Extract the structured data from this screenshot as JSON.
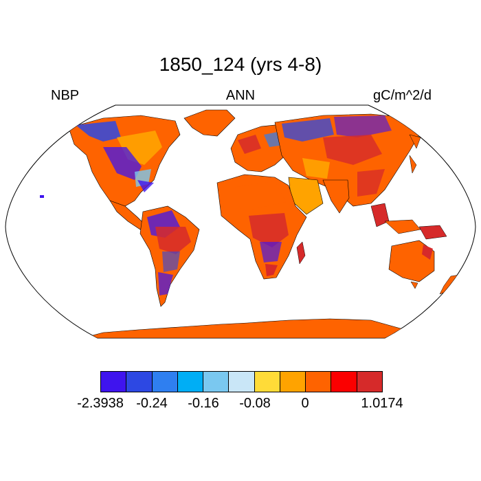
{
  "title": "1850_124 (yrs 4-8)",
  "left_label": "NBP",
  "center_label": "ANN",
  "right_label": "gC/m^2/d",
  "colorbar": {
    "colors": [
      "#3f14ee",
      "#2d48e3",
      "#2f7ff0",
      "#00aef5",
      "#7ac8f0",
      "#c9e6f7",
      "#ffdb38",
      "#ffa300",
      "#fe6300",
      "#fb0000",
      "#d62a2a"
    ],
    "labels": [
      "-2.3938",
      "-0.24",
      "-0.16",
      "-0.08",
      "0",
      "1.0174"
    ]
  },
  "chart_data": {
    "type": "heatmap",
    "title": "1850_124 (yrs 4-8)",
    "variable": "NBP",
    "season": "ANN",
    "units": "gC/m^2/d",
    "projection": "Robinson",
    "color_levels": [
      -2.3938,
      -0.24,
      -0.16,
      -0.08,
      0,
      1.0174
    ]
  }
}
